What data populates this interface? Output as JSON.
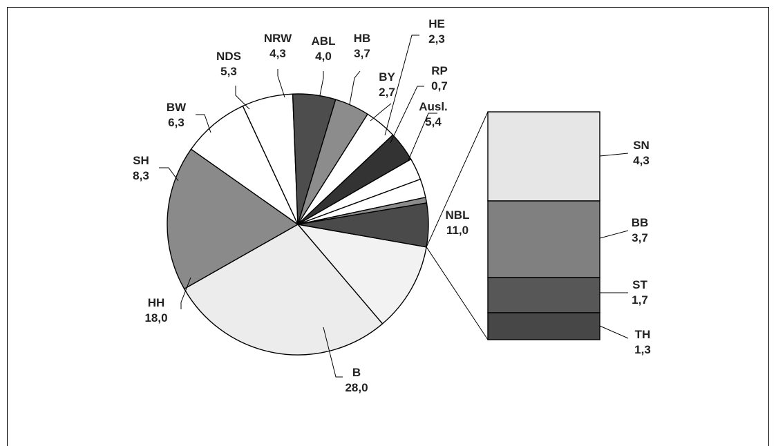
{
  "chart_data": [
    {
      "type": "pie",
      "slices": [
        {
          "label": "NBL",
          "value": 11.0,
          "value_text": "11,0",
          "color": "#f2f2f2"
        },
        {
          "label": "B",
          "value": 28.0,
          "value_text": "28,0",
          "color": "#ececec"
        },
        {
          "label": "HH",
          "value": 18.0,
          "value_text": "18,0",
          "color": "#8a8a8a"
        },
        {
          "label": "SH",
          "value": 8.3,
          "value_text": "8,3",
          "color": "#ffffff"
        },
        {
          "label": "BW",
          "value": 6.3,
          "value_text": "6,3",
          "color": "#ffffff"
        },
        {
          "label": "NDS",
          "value": 5.3,
          "value_text": "5,3",
          "color": "#4d4d4d"
        },
        {
          "label": "NRW",
          "value": 4.3,
          "value_text": "4,3",
          "color": "#8c8c8c"
        },
        {
          "label": "ABL",
          "value": 4.0,
          "value_text": "4,0",
          "color": "#ffffff"
        },
        {
          "label": "HB",
          "value": 3.7,
          "value_text": "3,7",
          "color": "#333333"
        },
        {
          "label": "BY",
          "value": 2.7,
          "value_text": "2,7",
          "color": "#ffffff"
        },
        {
          "label": "HE",
          "value": 2.3,
          "value_text": "2,3",
          "color": "#ffffff"
        },
        {
          "label": "RP",
          "value": 0.7,
          "value_text": "0,7",
          "color": "#8c8c8c"
        },
        {
          "label": "Ausl.",
          "value": 5.4,
          "value_text": "5,4",
          "color": "#4a4a4a"
        }
      ]
    },
    {
      "type": "bar",
      "stacked": true,
      "breakdown_of": "NBL",
      "segments": [
        {
          "label": "SN",
          "value": 4.3,
          "value_text": "4,3",
          "color": "#e6e6e6"
        },
        {
          "label": "BB",
          "value": 3.7,
          "value_text": "3,7",
          "color": "#808080"
        },
        {
          "label": "ST",
          "value": 1.7,
          "value_text": "1,7",
          "color": "#575757"
        },
        {
          "label": "TH",
          "value": 1.3,
          "value_text": "1,3",
          "color": "#474747"
        }
      ]
    }
  ]
}
